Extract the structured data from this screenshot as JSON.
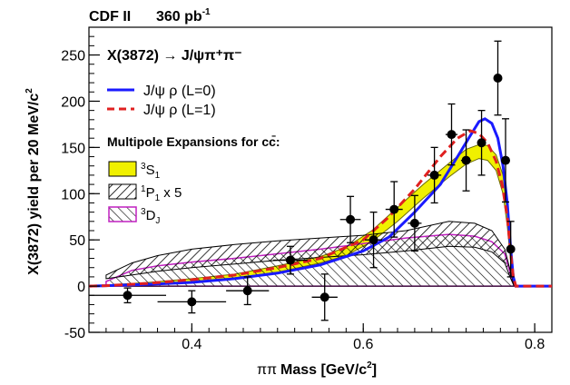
{
  "chart_data": {
    "type": "scatter",
    "header": "CDF II",
    "luminosity": {
      "value": "360 pb",
      "exponent": "-1"
    },
    "xlabel": {
      "prefix": "ππ",
      "main": "Mass [GeV/c",
      "sup": "2",
      "close": "]"
    },
    "ylabel": {
      "main": "X(3872) yield per 20 MeV/c",
      "sup": "2"
    },
    "xlim": [
      0.28,
      0.82
    ],
    "ylim": [
      -50,
      280
    ],
    "xticks": [
      {
        "value": 0.4,
        "label": "0.4"
      },
      {
        "value": 0.6,
        "label": "0.6"
      },
      {
        "value": 0.8,
        "label": "0.8"
      }
    ],
    "yticks": [
      {
        "value": -50,
        "label": "-50"
      },
      {
        "value": 0,
        "label": "0"
      },
      {
        "value": 50,
        "label": "50"
      },
      {
        "value": 100,
        "label": "100"
      },
      {
        "value": 150,
        "label": "150"
      },
      {
        "value": 200,
        "label": "200"
      },
      {
        "value": 250,
        "label": "250"
      }
    ],
    "grid": false,
    "legend": {
      "title": "X(3872) → J/ψπ⁺π⁻",
      "lines": [
        {
          "text": "J/ψ ρ (L=0)",
          "color": "#1a1aff",
          "dash": false
        },
        {
          "text": "J/ψ ρ (L=1)",
          "color": "#e02020",
          "dash": true
        }
      ],
      "multipole_title": "Multipole Expansions for cc̄:",
      "multipoles": [
        {
          "sup": "3",
          "main": "S",
          "sub": "1",
          "extra": "",
          "color": "#6b6b00"
        },
        {
          "sup": "1",
          "main": "P",
          "sub": "1",
          "extra": " x 5",
          "color": "#a02a2a"
        },
        {
          "sup": "3",
          "main": "D",
          "sub": "J",
          "extra": "",
          "color": "#a02aa0"
        }
      ]
    },
    "colors": {
      "s1_fill": "#f0f000",
      "p1_hatch": "#000000",
      "d_outline": "#c020c0",
      "l0": "#1a1aff",
      "l1": "#e02020"
    },
    "data_points": [
      {
        "x": 0.325,
        "y": -10,
        "xerr": 0.045,
        "yerr": 8
      },
      {
        "x": 0.4,
        "y": -17,
        "xerr": 0.04,
        "yerr": 12
      },
      {
        "x": 0.465,
        "y": -5,
        "xerr": 0.025,
        "yerr": 15
      },
      {
        "x": 0.515,
        "y": 28,
        "xerr": 0.02,
        "yerr": 15
      },
      {
        "x": 0.555,
        "y": -12,
        "xerr": 0.015,
        "yerr": 25
      },
      {
        "x": 0.585,
        "y": 72,
        "xerr": 0.012,
        "yerr": 25
      },
      {
        "x": 0.612,
        "y": 50,
        "xerr": 0.01,
        "yerr": 30
      },
      {
        "x": 0.636,
        "y": 83,
        "xerr": 0.01,
        "yerr": 30
      },
      {
        "x": 0.66,
        "y": 68,
        "xerr": 0.008,
        "yerr": 30
      },
      {
        "x": 0.683,
        "y": 120,
        "xerr": 0.008,
        "yerr": 30
      },
      {
        "x": 0.703,
        "y": 164,
        "xerr": 0.007,
        "yerr": 33
      },
      {
        "x": 0.72,
        "y": 136,
        "xerr": 0.006,
        "yerr": 33
      },
      {
        "x": 0.738,
        "y": 155,
        "xerr": 0.005,
        "yerr": 35
      },
      {
        "x": 0.757,
        "y": 225,
        "xerr": 0.004,
        "yerr": 40
      },
      {
        "x": 0.766,
        "y": 136,
        "xerr": 0.003,
        "yerr": 45
      },
      {
        "x": 0.772,
        "y": 40,
        "xerr": 0.003,
        "yerr": 30
      }
    ],
    "curve_l0": [
      [
        0.28,
        0
      ],
      [
        0.3,
        0.5
      ],
      [
        0.35,
        2
      ],
      [
        0.4,
        4
      ],
      [
        0.45,
        8
      ],
      [
        0.5,
        14
      ],
      [
        0.55,
        23
      ],
      [
        0.6,
        38
      ],
      [
        0.63,
        53
      ],
      [
        0.66,
        80
      ],
      [
        0.69,
        110
      ],
      [
        0.71,
        140
      ],
      [
        0.725,
        163
      ],
      [
        0.735,
        178
      ],
      [
        0.742,
        181
      ],
      [
        0.75,
        176
      ],
      [
        0.757,
        160
      ],
      [
        0.763,
        130
      ],
      [
        0.768,
        90
      ],
      [
        0.772,
        40
      ],
      [
        0.775,
        10
      ],
      [
        0.778,
        0
      ],
      [
        0.82,
        0
      ]
    ],
    "curve_l1": [
      [
        0.28,
        0
      ],
      [
        0.3,
        0.5
      ],
      [
        0.35,
        3
      ],
      [
        0.4,
        7
      ],
      [
        0.45,
        12
      ],
      [
        0.5,
        20
      ],
      [
        0.55,
        30
      ],
      [
        0.6,
        50
      ],
      [
        0.63,
        75
      ],
      [
        0.66,
        105
      ],
      [
        0.69,
        140
      ],
      [
        0.71,
        160
      ],
      [
        0.725,
        168
      ],
      [
        0.735,
        165
      ],
      [
        0.745,
        155
      ],
      [
        0.755,
        135
      ],
      [
        0.762,
        110
      ],
      [
        0.768,
        75
      ],
      [
        0.772,
        35
      ],
      [
        0.775,
        10
      ],
      [
        0.778,
        0
      ],
      [
        0.82,
        0
      ]
    ],
    "band_s1": {
      "upper": [
        [
          0.28,
          0
        ],
        [
          0.35,
          4
        ],
        [
          0.4,
          8
        ],
        [
          0.45,
          13
        ],
        [
          0.5,
          22
        ],
        [
          0.55,
          32
        ],
        [
          0.58,
          42
        ],
        [
          0.61,
          60
        ],
        [
          0.64,
          85
        ],
        [
          0.67,
          110
        ],
        [
          0.7,
          133
        ],
        [
          0.72,
          148
        ],
        [
          0.735,
          153
        ],
        [
          0.745,
          152
        ],
        [
          0.755,
          142
        ],
        [
          0.763,
          120
        ],
        [
          0.768,
          80
        ],
        [
          0.772,
          35
        ],
        [
          0.776,
          0
        ]
      ],
      "lower": [
        [
          0.28,
          0
        ],
        [
          0.35,
          2
        ],
        [
          0.4,
          5
        ],
        [
          0.45,
          9
        ],
        [
          0.5,
          15
        ],
        [
          0.55,
          25
        ],
        [
          0.58,
          33
        ],
        [
          0.61,
          48
        ],
        [
          0.64,
          70
        ],
        [
          0.67,
          95
        ],
        [
          0.7,
          118
        ],
        [
          0.72,
          132
        ],
        [
          0.735,
          138
        ],
        [
          0.745,
          136
        ],
        [
          0.755,
          125
        ],
        [
          0.763,
          100
        ],
        [
          0.768,
          65
        ],
        [
          0.772,
          25
        ],
        [
          0.776,
          0
        ]
      ]
    },
    "band_p1": {
      "upper": [
        [
          0.3,
          12
        ],
        [
          0.33,
          25
        ],
        [
          0.36,
          33
        ],
        [
          0.4,
          40
        ],
        [
          0.45,
          45
        ],
        [
          0.5,
          49
        ],
        [
          0.55,
          52
        ],
        [
          0.6,
          55
        ],
        [
          0.65,
          60
        ],
        [
          0.7,
          70
        ],
        [
          0.73,
          68
        ],
        [
          0.75,
          60
        ],
        [
          0.765,
          40
        ],
        [
          0.772,
          15
        ],
        [
          0.776,
          0
        ]
      ],
      "lower": [
        [
          0.3,
          8
        ],
        [
          0.33,
          12
        ],
        [
          0.36,
          16
        ],
        [
          0.4,
          20
        ],
        [
          0.45,
          24
        ],
        [
          0.5,
          28
        ],
        [
          0.55,
          31
        ],
        [
          0.6,
          34
        ],
        [
          0.65,
          38
        ],
        [
          0.7,
          43
        ],
        [
          0.73,
          42
        ],
        [
          0.75,
          37
        ],
        [
          0.765,
          25
        ],
        [
          0.772,
          8
        ],
        [
          0.776,
          0
        ]
      ]
    },
    "band_d": {
      "upper": [
        [
          0.3,
          5
        ],
        [
          0.33,
          17
        ],
        [
          0.36,
          22
        ],
        [
          0.4,
          26
        ],
        [
          0.45,
          30
        ],
        [
          0.5,
          35
        ],
        [
          0.55,
          40
        ],
        [
          0.6,
          46
        ],
        [
          0.65,
          52
        ],
        [
          0.7,
          56
        ],
        [
          0.73,
          54
        ],
        [
          0.75,
          48
        ],
        [
          0.765,
          35
        ],
        [
          0.772,
          12
        ],
        [
          0.776,
          0
        ]
      ],
      "lower": [
        [
          0.3,
          0
        ],
        [
          0.33,
          0
        ],
        [
          0.4,
          0
        ],
        [
          0.5,
          0
        ],
        [
          0.6,
          0
        ],
        [
          0.7,
          0
        ],
        [
          0.776,
          0
        ]
      ]
    }
  }
}
